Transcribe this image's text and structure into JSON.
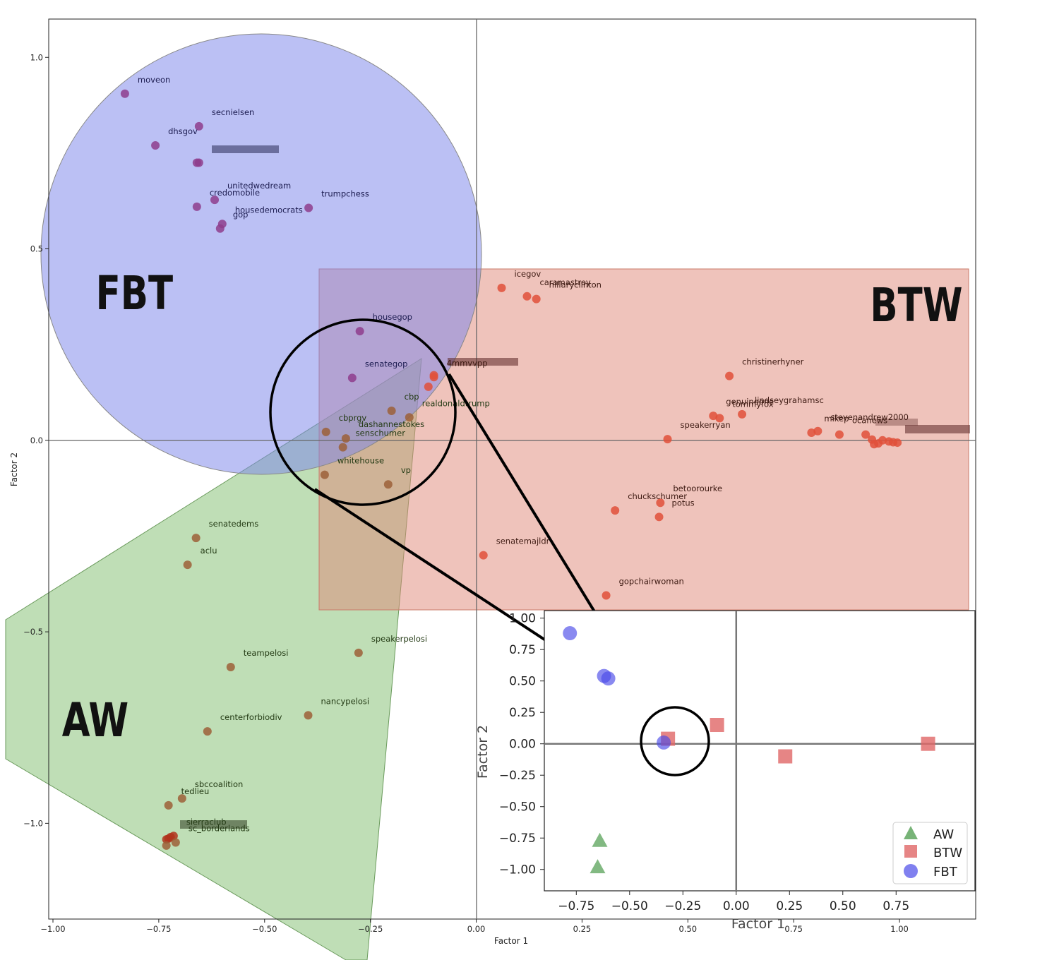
{
  "chart_data": {
    "type": "scatter",
    "xlabel": "Factor 1",
    "ylabel": "Factor 2",
    "xlim": [
      -1.01,
      1.18
    ],
    "ylim": [
      -1.25,
      1.1
    ],
    "xticks": [
      "−1.00",
      "−0.75",
      "−0.50",
      "−0.25",
      "0.00",
      "0.25",
      "0.50",
      "0.75",
      "1.00"
    ],
    "yticks": [
      "1.0",
      "0.5",
      "0.0",
      "−0.5",
      "−1.0"
    ],
    "regions": [
      "FBT",
      "BTW",
      "AW"
    ],
    "colors": {
      "FBT": "#8e3d8c",
      "BTW": "#e0503a",
      "AW": "#9c6038",
      "AW_dark": "#b0321c"
    },
    "points": [
      {
        "label": "moveon",
        "x": -0.83,
        "y": 0.905,
        "g": "FBT"
      },
      {
        "label": "secnielsen",
        "x": -0.655,
        "y": 0.82,
        "g": "FBT"
      },
      {
        "label": "dhsgov",
        "x": -0.758,
        "y": 0.77,
        "g": "FBT"
      },
      {
        "label": "",
        "x": -0.655,
        "y": 0.725,
        "g": "FBT"
      },
      {
        "label": "",
        "x": -0.66,
        "y": 0.725,
        "g": "FBT"
      },
      {
        "label": "unitedwedream",
        "x": -0.618,
        "y": 0.628,
        "g": "FBT"
      },
      {
        "label": "credomobile",
        "x": -0.66,
        "y": 0.61,
        "g": "FBT"
      },
      {
        "label": "trumpchess",
        "x": -0.396,
        "y": 0.607,
        "g": "FBT"
      },
      {
        "label": "housedemocrats",
        "x": -0.6,
        "y": 0.565,
        "g": "FBT"
      },
      {
        "label": "gop",
        "x": -0.605,
        "y": 0.553,
        "g": "FBT"
      },
      {
        "label": "housegop",
        "x": -0.275,
        "y": 0.285,
        "g": "FBT"
      },
      {
        "label": "senategop",
        "x": -0.293,
        "y": 0.163,
        "g": "FBT"
      },
      {
        "label": "icegov",
        "x": 0.06,
        "y": 0.398,
        "g": "BTW"
      },
      {
        "label": "caramastrey",
        "x": 0.12,
        "y": 0.376,
        "g": "BTW"
      },
      {
        "label": "hillaryclinton",
        "x": 0.142,
        "y": 0.369,
        "g": "BTW"
      },
      {
        "label": "",
        "x": -0.1,
        "y": 0.17,
        "g": "BTW"
      },
      {
        "label": "4mmvvpp",
        "x": -0.1,
        "y": 0.165,
        "g": "BTW"
      },
      {
        "label": "",
        "x": -0.113,
        "y": 0.14,
        "g": "BTW"
      },
      {
        "label": "christinerhyner",
        "x": 0.598,
        "y": 0.168,
        "g": "BTW"
      },
      {
        "label": "genuineone",
        "x": 0.56,
        "y": 0.064,
        "g": "BTW"
      },
      {
        "label": "tommyfox",
        "x": 0.575,
        "y": 0.058,
        "g": "BTW"
      },
      {
        "label": "lindseygrahamsc",
        "x": 0.628,
        "y": 0.068,
        "g": "BTW"
      },
      {
        "label": "speakerryan",
        "x": 0.452,
        "y": 0.003,
        "g": "BTW"
      },
      {
        "label": "mikep",
        "x": 0.792,
        "y": 0.02,
        "g": "BTW"
      },
      {
        "label": "stevenandrew2000",
        "x": 0.807,
        "y": 0.024,
        "g": "BTW"
      },
      {
        "label": "ocanews",
        "x": 0.858,
        "y": 0.015,
        "g": "BTW"
      },
      {
        "label": "",
        "x": 0.92,
        "y": 0.015,
        "g": "BTW"
      },
      {
        "label": "",
        "x": 0.935,
        "y": 0.002,
        "g": "BTW"
      },
      {
        "label": "",
        "x": 0.95,
        "y": -0.008,
        "g": "BTW"
      },
      {
        "label": "",
        "x": 0.96,
        "y": 0.0,
        "g": "BTW"
      },
      {
        "label": "",
        "x": 0.975,
        "y": -0.003,
        "g": "BTW"
      },
      {
        "label": "",
        "x": 0.985,
        "y": -0.005,
        "g": "BTW"
      },
      {
        "label": "",
        "x": 0.995,
        "y": -0.006,
        "g": "BTW"
      },
      {
        "label": "",
        "x": 0.94,
        "y": -0.01,
        "g": "BTW"
      },
      {
        "label": "betoorourke",
        "x": 0.435,
        "y": -0.163,
        "g": "BTW"
      },
      {
        "label": "chuckschumer",
        "x": 0.328,
        "y": -0.183,
        "g": "BTW"
      },
      {
        "label": "potus",
        "x": 0.432,
        "y": -0.2,
        "g": "BTW"
      },
      {
        "label": "senatemajldr",
        "x": 0.017,
        "y": -0.3,
        "g": "BTW"
      },
      {
        "label": "gopchairwoman",
        "x": 0.307,
        "y": -0.405,
        "g": "BTW"
      },
      {
        "label": "cbp",
        "x": -0.2,
        "y": 0.077,
        "g": "AW"
      },
      {
        "label": "realdonaldtrump",
        "x": -0.158,
        "y": 0.06,
        "g": "AW"
      },
      {
        "label": "cbprgv",
        "x": -0.355,
        "y": 0.022,
        "g": "AW"
      },
      {
        "label": "dashannestokes",
        "x": -0.308,
        "y": 0.005,
        "g": "AW"
      },
      {
        "label": "senschumer",
        "x": -0.315,
        "y": -0.018,
        "g": "AW"
      },
      {
        "label": "whitehouse",
        "x": -0.358,
        "y": -0.09,
        "g": "AW"
      },
      {
        "label": "vp",
        "x": -0.208,
        "y": -0.115,
        "g": "AW"
      },
      {
        "label": "senatedems",
        "x": -0.662,
        "y": -0.255,
        "g": "AW"
      },
      {
        "label": "aclu",
        "x": -0.682,
        "y": -0.325,
        "g": "AW"
      },
      {
        "label": "speakerpelosi",
        "x": -0.278,
        "y": -0.555,
        "g": "AW"
      },
      {
        "label": "teampelosi",
        "x": -0.58,
        "y": -0.592,
        "g": "AW"
      },
      {
        "label": "nancypelosi",
        "x": -0.397,
        "y": -0.718,
        "g": "AW"
      },
      {
        "label": "centerforbiodiv",
        "x": -0.635,
        "y": -0.76,
        "g": "AW"
      },
      {
        "label": "sbccoalition",
        "x": -0.695,
        "y": -0.935,
        "g": "AW"
      },
      {
        "label": "tedlieu",
        "x": -0.727,
        "y": -0.953,
        "g": "AW"
      },
      {
        "label": "sierraclub",
        "x": -0.715,
        "y": -1.033,
        "g": "AW_dark"
      },
      {
        "label": "",
        "x": -0.722,
        "y": -1.036,
        "g": "AW_dark"
      },
      {
        "label": "",
        "x": -0.727,
        "y": -1.04,
        "g": "AW_dark"
      },
      {
        "label": "",
        "x": -0.732,
        "y": -1.042,
        "g": "AW_dark"
      },
      {
        "label": "sc_borderlands",
        "x": -0.71,
        "y": -1.05,
        "g": "AW"
      },
      {
        "label": "",
        "x": -0.732,
        "y": -1.058,
        "g": "AW"
      }
    ],
    "inset": {
      "xlabel": "Factor 1",
      "ylabel": "Factor 2",
      "xlim": [
        -0.9,
        1.12
      ],
      "ylim": [
        -1.17,
        1.06
      ],
      "xticks": [
        "−0.75",
        "−0.50",
        "−0.25",
        "0.00",
        "0.25",
        "0.50",
        "0.75"
      ],
      "yticks": [
        "1.00",
        "0.75",
        "0.50",
        "0.25",
        "0.00",
        "−0.25",
        "−0.50",
        "−0.75",
        "−1.00"
      ],
      "series": [
        {
          "name": "AW",
          "marker": "triangle",
          "color": "#2e8b2e",
          "points": [
            [
              -0.64,
              -0.77
            ],
            [
              -0.65,
              -0.98
            ]
          ]
        },
        {
          "name": "BTW",
          "marker": "square",
          "color": "#e06666",
          "points": [
            [
              -0.32,
              0.04
            ],
            [
              -0.09,
              0.15
            ],
            [
              0.23,
              -0.1
            ],
            [
              0.9,
              0.0
            ]
          ]
        },
        {
          "name": "FBT",
          "marker": "circle",
          "color": "#4a4ae8",
          "points": [
            [
              -0.78,
              0.88
            ],
            [
              -0.62,
              0.54
            ],
            [
              -0.6,
              0.52
            ],
            [
              -0.34,
              0.01
            ]
          ]
        }
      ]
    }
  }
}
